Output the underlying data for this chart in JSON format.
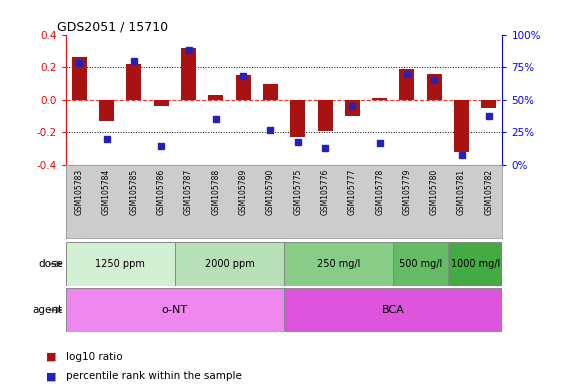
{
  "title": "GDS2051 / 15710",
  "samples": [
    "GSM105783",
    "GSM105784",
    "GSM105785",
    "GSM105786",
    "GSM105787",
    "GSM105788",
    "GSM105789",
    "GSM105790",
    "GSM105775",
    "GSM105776",
    "GSM105777",
    "GSM105778",
    "GSM105779",
    "GSM105780",
    "GSM105781",
    "GSM105782"
  ],
  "log10_ratio": [
    0.26,
    -0.13,
    0.22,
    -0.04,
    0.32,
    0.03,
    0.15,
    0.1,
    -0.23,
    -0.19,
    -0.1,
    0.01,
    0.19,
    0.16,
    -0.32,
    -0.05
  ],
  "percentile_rank": [
    78,
    20,
    80,
    15,
    88,
    35,
    68,
    27,
    18,
    13,
    45,
    17,
    70,
    65,
    8,
    38
  ],
  "ylim": [
    -0.4,
    0.4
  ],
  "y2lim": [
    0,
    100
  ],
  "bar_color": "#aa1111",
  "dot_color": "#2222bb",
  "dose_groups": [
    {
      "label": "1250 ppm",
      "start": 0,
      "end": 4,
      "color": "#d4f0d4"
    },
    {
      "label": "2000 ppm",
      "start": 4,
      "end": 8,
      "color": "#b8e0b8"
    },
    {
      "label": "250 mg/l",
      "start": 8,
      "end": 12,
      "color": "#88cc88"
    },
    {
      "label": "500 mg/l",
      "start": 12,
      "end": 14,
      "color": "#66bb66"
    },
    {
      "label": "1000 mg/l",
      "start": 14,
      "end": 16,
      "color": "#44aa44"
    }
  ],
  "agent_groups": [
    {
      "label": "o-NT",
      "start": 0,
      "end": 8,
      "color": "#ee88ee"
    },
    {
      "label": "BCA",
      "start": 8,
      "end": 16,
      "color": "#dd55dd"
    }
  ],
  "dose_label": "dose",
  "agent_label": "agent",
  "legend_ratio_label": "log10 ratio",
  "legend_pct_label": "percentile rank within the sample",
  "grid_color": "#000000",
  "bg_color": "#ffffff",
  "label_area_color": "#cccccc",
  "yticks": [
    -0.4,
    -0.2,
    0.0,
    0.2,
    0.4
  ],
  "y2ticks": [
    0,
    25,
    50,
    75,
    100
  ],
  "y2ticklabels": [
    "0%",
    "25%",
    "50%",
    "75%",
    "100%"
  ]
}
